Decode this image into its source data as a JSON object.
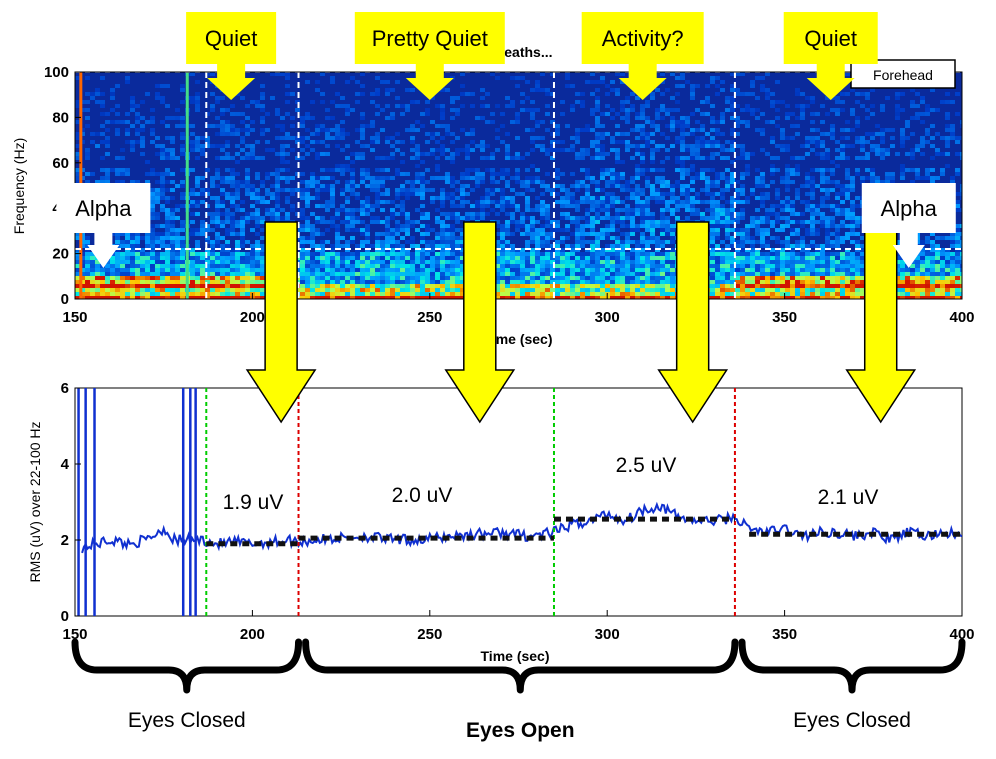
{
  "chart_data": [
    {
      "type": "heatmap",
      "title": "...y..._secBreaths...",
      "xlabel": "Time (sec)",
      "ylabel": "Frequency (Hz)",
      "xlim": [
        150,
        400
      ],
      "ylim": [
        0,
        100
      ],
      "xticks": [
        "150",
        "200",
        "250",
        "300",
        "350",
        "400"
      ],
      "yticks": [
        "0",
        "20",
        "40",
        "60",
        "80",
        "100"
      ],
      "legend": {
        "label": "Forehead",
        "position": "top-right"
      },
      "band_line_hz": 22,
      "segment_lines_sec": [
        187,
        213,
        285,
        336
      ],
      "colors": {
        "background": "#0a2a9c",
        "alpha": "#e03010",
        "guide": "#ffffff"
      }
    },
    {
      "type": "line",
      "xlabel": "Time (sec)",
      "ylabel": "RMS (uV) over 22-100 Hz",
      "xlim": [
        150,
        400
      ],
      "ylim": [
        0,
        6
      ],
      "xticks": [
        "150",
        "200",
        "250",
        "300",
        "350",
        "400"
      ],
      "yticks": [
        "0",
        "2",
        "4",
        "6"
      ],
      "series": [
        {
          "name": "",
          "color": "#1030d0",
          "x": [
            152,
            156,
            160,
            165,
            170,
            175,
            178,
            186,
            190,
            195,
            200,
            205,
            210,
            213,
            218,
            225,
            232,
            240,
            248,
            255,
            262,
            270,
            278,
            285,
            290,
            295,
            300,
            305,
            310,
            315,
            320,
            325,
            330,
            336,
            340,
            345,
            350,
            355,
            360,
            365,
            370,
            375,
            380,
            385,
            390,
            395,
            400
          ],
          "y": [
            1.8,
            1.9,
            2.0,
            1.9,
            2.0,
            2.3,
            2.0,
            2.0,
            1.9,
            1.95,
            1.9,
            1.95,
            2.0,
            1.95,
            2.0,
            2.05,
            2.1,
            2.0,
            2.0,
            2.1,
            2.15,
            2.2,
            2.1,
            2.2,
            2.4,
            2.5,
            2.7,
            2.5,
            2.8,
            2.9,
            2.6,
            2.5,
            2.5,
            2.6,
            2.3,
            2.2,
            2.3,
            2.1,
            2.2,
            2.2,
            2.1,
            2.2,
            2.0,
            2.2,
            2.1,
            2.2,
            2.1
          ]
        }
      ],
      "segment_lines": [
        {
          "x": 187,
          "color": "#00cc00"
        },
        {
          "x": 213,
          "color": "#dd0000"
        },
        {
          "x": 285,
          "color": "#00cc00"
        },
        {
          "x": 336,
          "color": "#dd0000"
        }
      ],
      "mean_levels": [
        {
          "x0": 187,
          "x1": 213,
          "y": 1.9,
          "label": "1.9 uV"
        },
        {
          "x0": 213,
          "x1": 285,
          "y": 2.05,
          "label": "2.0 uV"
        },
        {
          "x0": 285,
          "x1": 336,
          "y": 2.55,
          "label": "2.5 uV"
        },
        {
          "x0": 340,
          "x1": 400,
          "y": 2.15,
          "label": "2.1 uV"
        }
      ]
    }
  ],
  "annotations": {
    "callouts": [
      {
        "label": "Quiet",
        "t": 194
      },
      {
        "label": "Pretty Quiet",
        "t": 250
      },
      {
        "label": "Activity?",
        "t": 310
      },
      {
        "label": "Quiet",
        "t": 363
      }
    ],
    "alpha_labels": [
      {
        "label": "Alpha",
        "t": 158
      },
      {
        "label": "Alpha",
        "t": 385
      }
    ],
    "segments": [
      {
        "label": "Eyes Closed",
        "t0": 150,
        "t1": 213,
        "bold": false
      },
      {
        "label": "Eyes Open",
        "t0": 215,
        "t1": 336,
        "bold": true
      },
      {
        "label": "Eyes Closed",
        "t0": 338,
        "t1": 400,
        "bold": false
      }
    ],
    "colors": {
      "callout_fill": "#ffff00",
      "arrow_fill": "#ffff00",
      "mean_line": "#111111"
    }
  }
}
